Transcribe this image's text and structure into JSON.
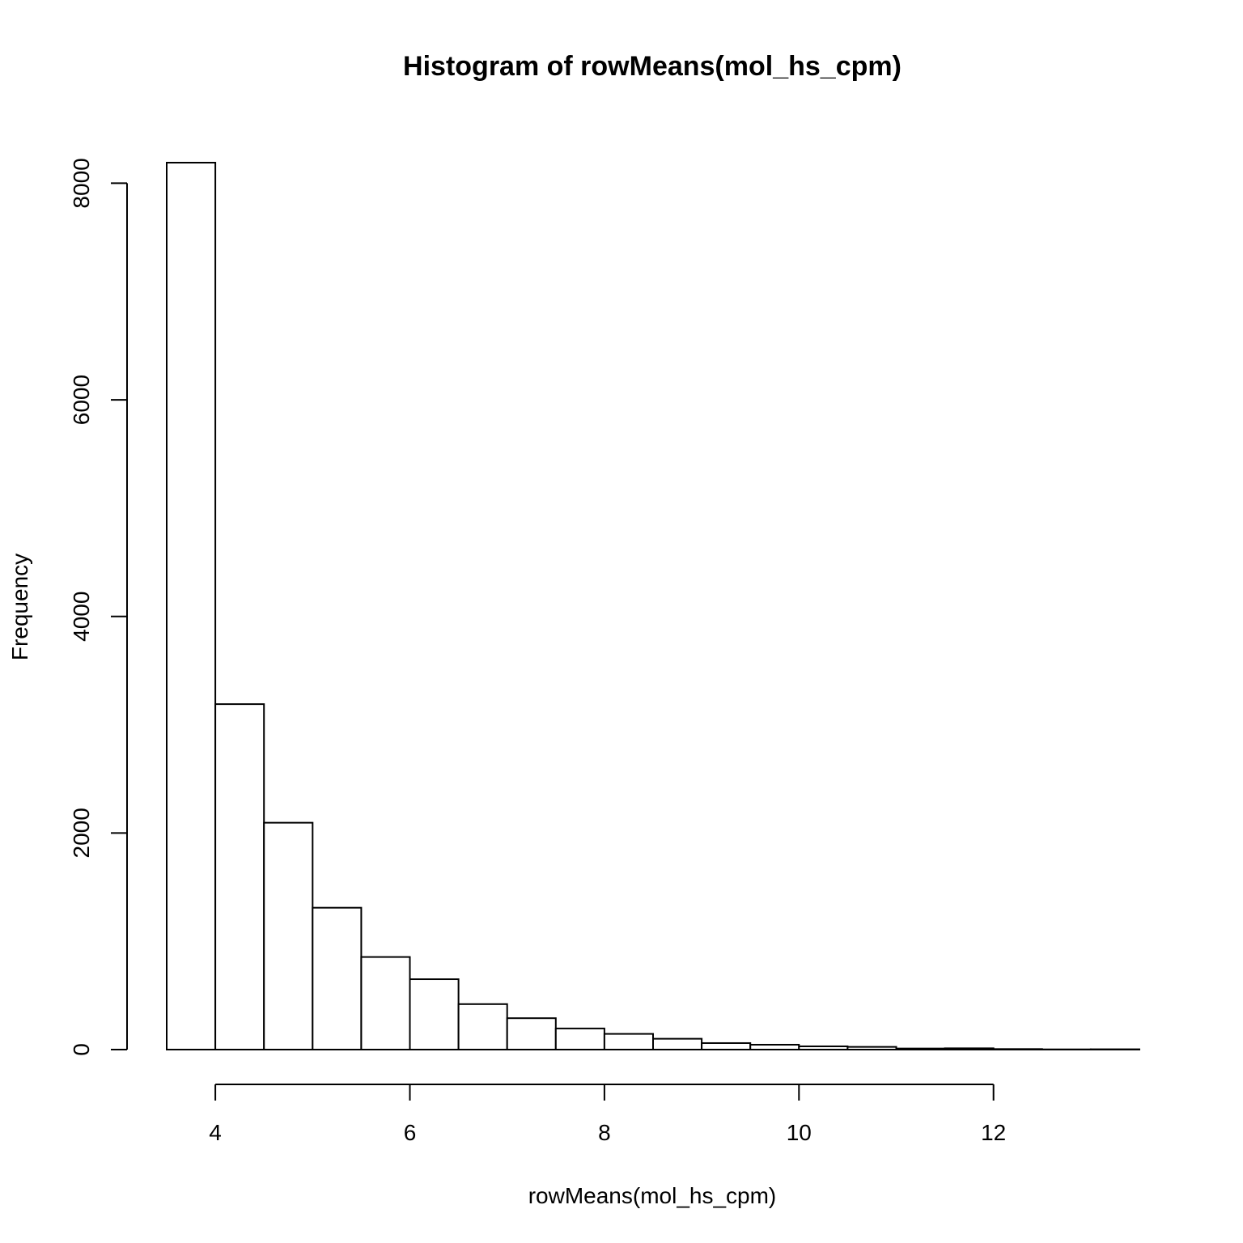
{
  "chart_data": {
    "type": "bar",
    "title": "Histogram of rowMeans(mol_hs_cpm)",
    "xlabel": "rowMeans(mol_hs_cpm)",
    "ylabel": "Frequency",
    "bins": [
      {
        "start": 3.5,
        "end": 4.0,
        "count": 8190
      },
      {
        "start": 4.0,
        "end": 4.5,
        "count": 3190
      },
      {
        "start": 4.5,
        "end": 5.0,
        "count": 2095
      },
      {
        "start": 5.0,
        "end": 5.5,
        "count": 1310
      },
      {
        "start": 5.5,
        "end": 6.0,
        "count": 855
      },
      {
        "start": 6.0,
        "end": 6.5,
        "count": 650
      },
      {
        "start": 6.5,
        "end": 7.0,
        "count": 420
      },
      {
        "start": 7.0,
        "end": 7.5,
        "count": 290
      },
      {
        "start": 7.5,
        "end": 8.0,
        "count": 195
      },
      {
        "start": 8.0,
        "end": 8.5,
        "count": 145
      },
      {
        "start": 8.5,
        "end": 9.0,
        "count": 100
      },
      {
        "start": 9.0,
        "end": 9.5,
        "count": 60
      },
      {
        "start": 9.5,
        "end": 10.0,
        "count": 45
      },
      {
        "start": 10.0,
        "end": 10.5,
        "count": 30
      },
      {
        "start": 10.5,
        "end": 11.0,
        "count": 25
      },
      {
        "start": 11.0,
        "end": 11.5,
        "count": 10
      },
      {
        "start": 11.5,
        "end": 12.0,
        "count": 12
      },
      {
        "start": 12.0,
        "end": 12.5,
        "count": 5
      },
      {
        "start": 12.5,
        "end": 13.0,
        "count": 2
      },
      {
        "start": 13.0,
        "end": 13.5,
        "count": 3
      }
    ],
    "xlim": [
      3.5,
      13.5
    ],
    "ylim": [
      0,
      8190
    ],
    "x_ticks": [
      4,
      6,
      8,
      10,
      12
    ],
    "x_tick_labels": [
      "4",
      "6",
      "8",
      "10",
      "12"
    ],
    "y_ticks": [
      0,
      2000,
      4000,
      6000,
      8000
    ],
    "y_tick_labels": [
      "0",
      "2000",
      "4000",
      "6000",
      "8000"
    ],
    "grid": false,
    "legend": "none",
    "colors": {
      "bar_fill": "#ffffff",
      "bar_stroke": "#000000",
      "axis": "#000000",
      "background": "#ffffff"
    }
  }
}
